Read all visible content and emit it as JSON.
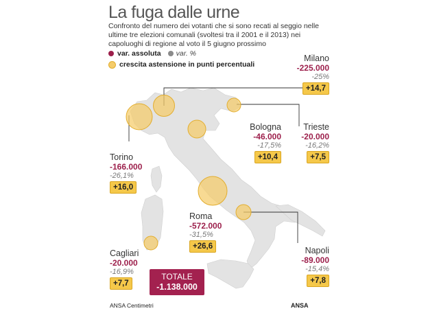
{
  "header": {
    "title": "La fuga dalle urne",
    "subtitle": "Confronto del numero dei votanti che si sono recati al seggio nelle ultime tre elezioni comunali (svoltesi tra il 2001 e il 2013) nei capoluoghi di regione al voto il 5 giugno prossimo"
  },
  "legend": {
    "abs_label": "var. assoluta",
    "pct_label": "var. %",
    "circle_label": "crescita astensione in punti percentuali",
    "abs_color": "#9c1f4b",
    "pct_color": "#8b8b8b",
    "circle_color": "#f5cc6a"
  },
  "cities": [
    {
      "name": "Milano",
      "abs": "-225.000",
      "pct": "-25%",
      "points": "+14,7"
    },
    {
      "name": "Torino",
      "abs": "-166.000",
      "pct": "-26,1%",
      "points": "+16,0"
    },
    {
      "name": "Bologna",
      "abs": "-46.000",
      "pct": "-17,5%",
      "points": "+10,4"
    },
    {
      "name": "Trieste",
      "abs": "-20.000",
      "pct": "-16,2%",
      "points": "+7,5"
    },
    {
      "name": "Roma",
      "abs": "-572.000",
      "pct": "-31,5%",
      "points": "+26,6"
    },
    {
      "name": "Cagliari",
      "abs": "-20.000",
      "pct": "-16,9%",
      "points": "+7,7"
    },
    {
      "name": "Napoli",
      "abs": "-89.000",
      "pct": "-15,4%",
      "points": "+7,8"
    }
  ],
  "total": {
    "label": "TOTALE",
    "value": "-1.138.000"
  },
  "credits": {
    "left": "ANSA Centimetri",
    "right": "ANSA"
  },
  "map_color": "#e3e3e3"
}
